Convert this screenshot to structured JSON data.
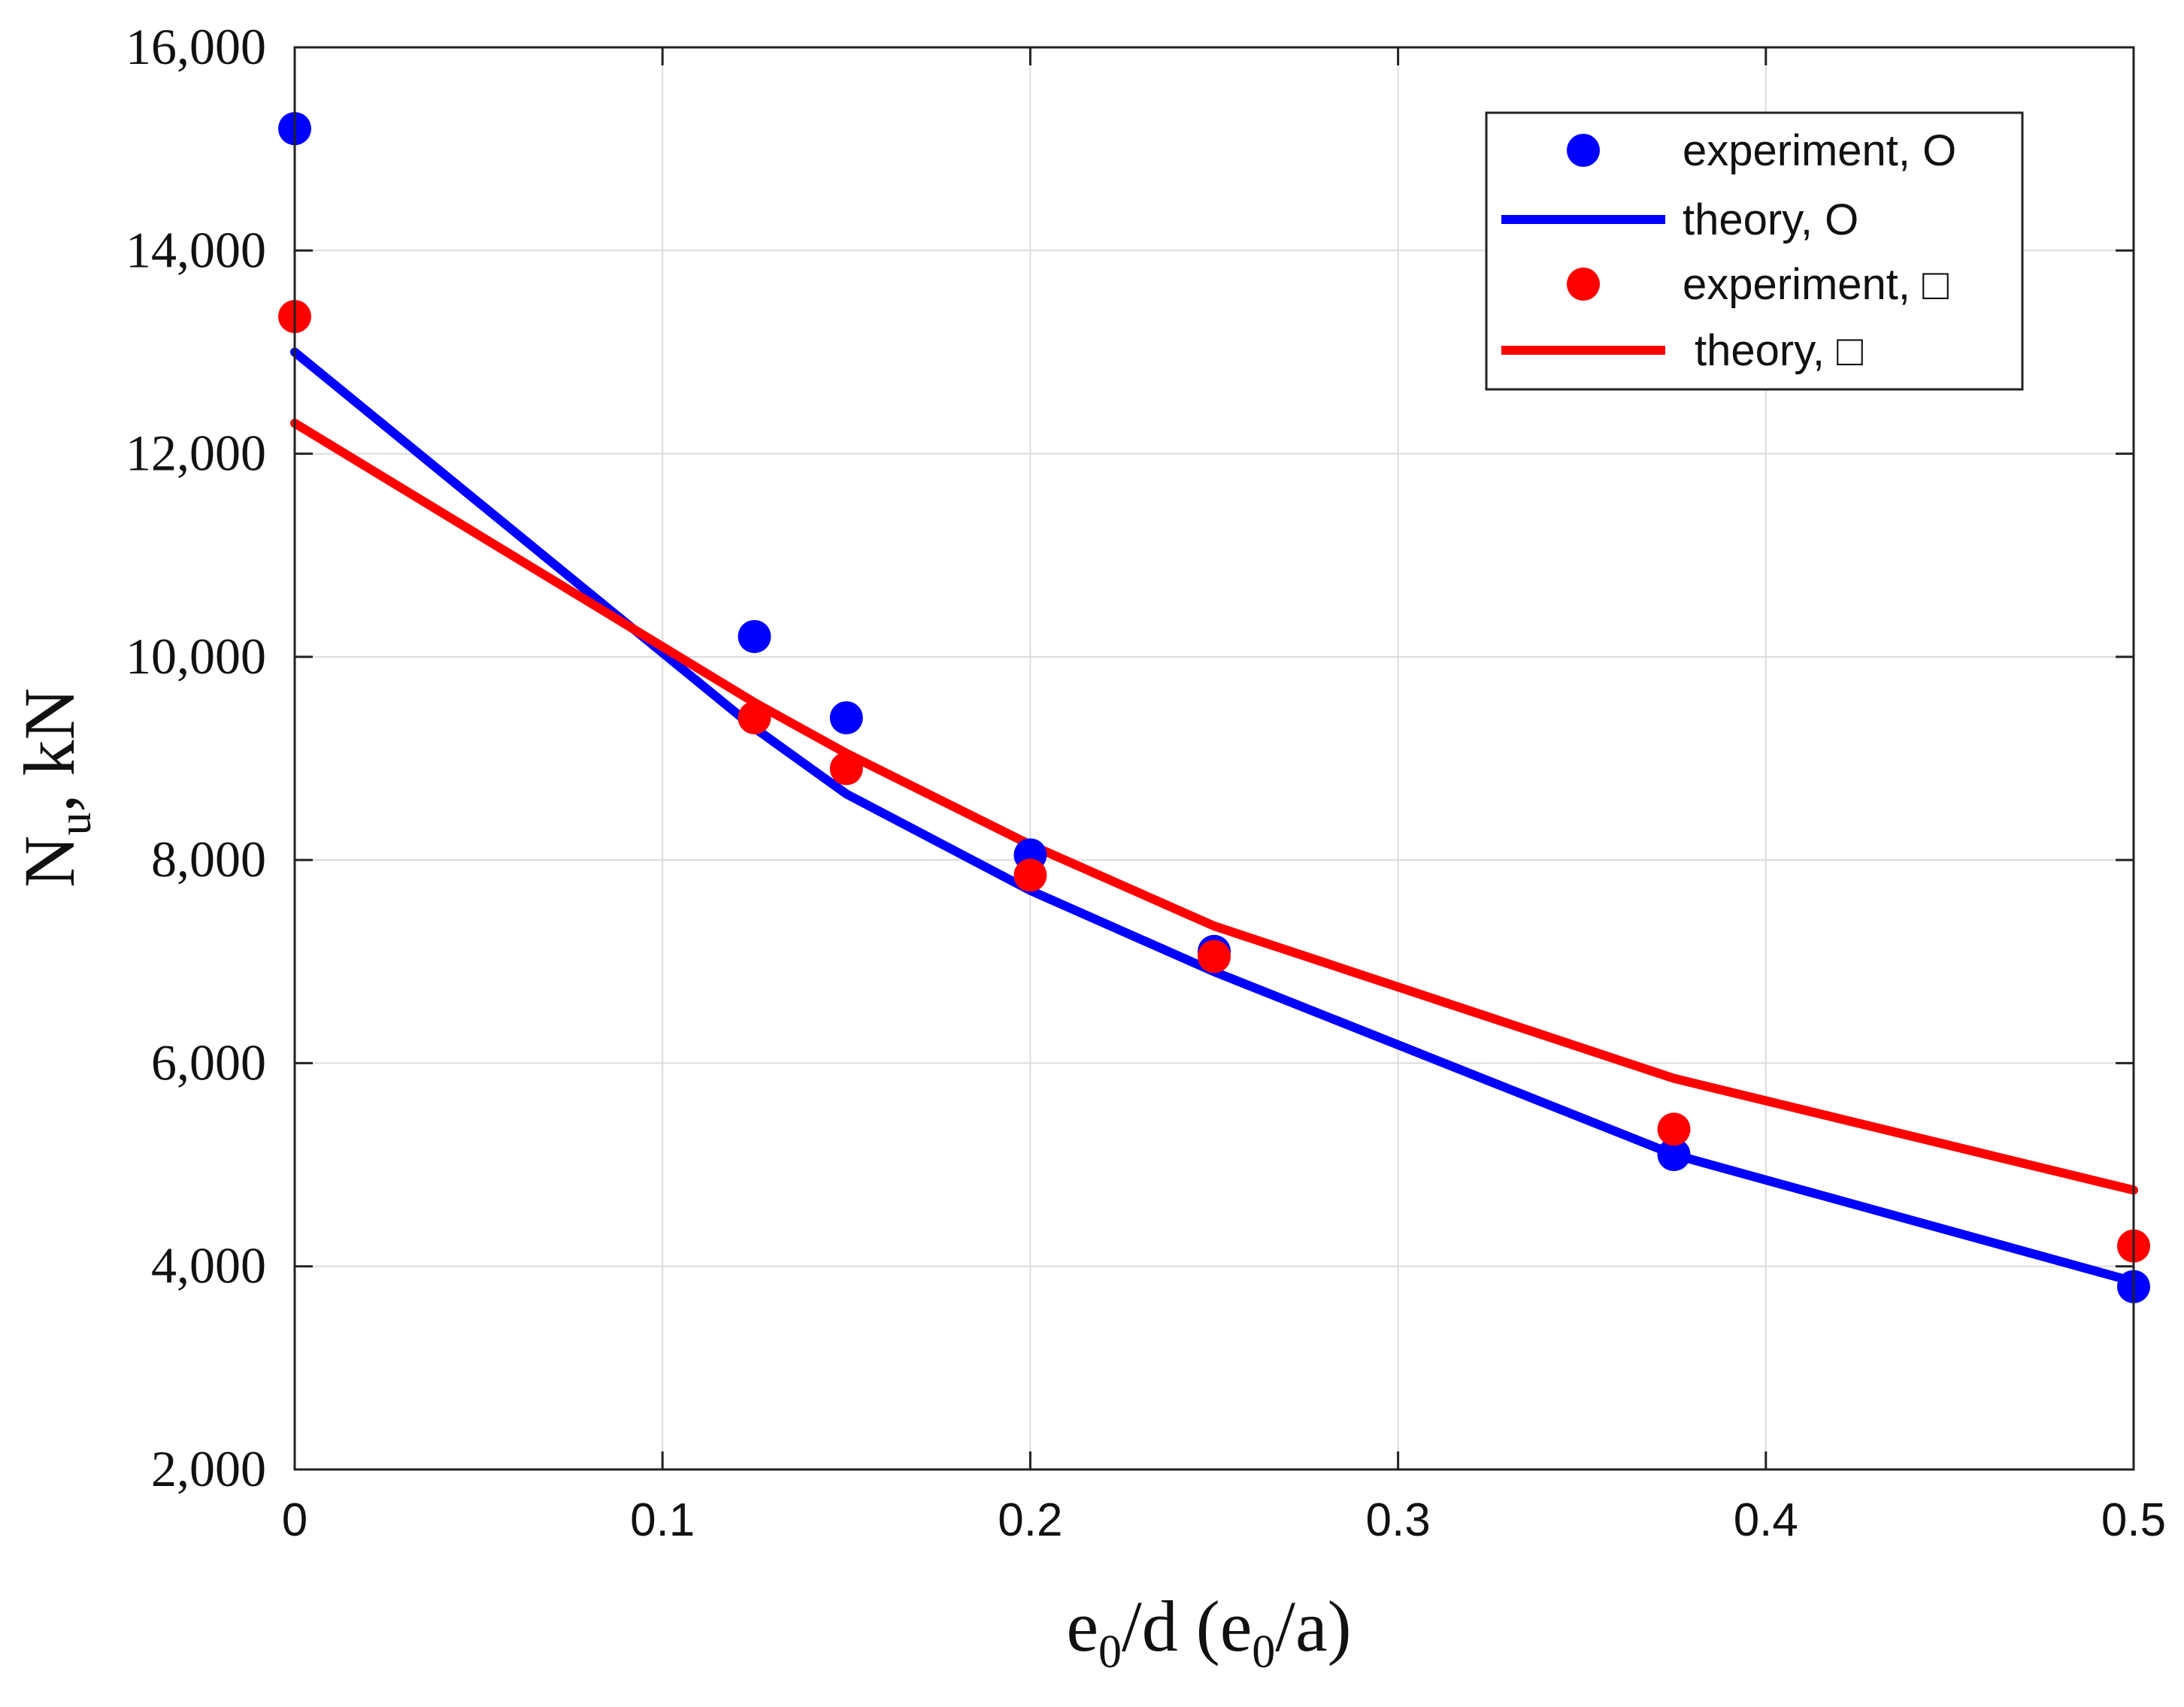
{
  "chart_data": {
    "type": "line",
    "title": "",
    "xlabel": "e0/d (e0/a)",
    "ylabel": "Nu, kN",
    "xlabel_parts": {
      "e1": "e",
      "s1": "0",
      "mid": "/d (e",
      "s2": "0",
      "end": "/a)"
    },
    "ylabel_parts": {
      "base": "N",
      "sub": "u",
      "rest": ", kN"
    },
    "xlim": [
      0,
      0.5
    ],
    "ylim": [
      2000,
      16000
    ],
    "x_ticks": [
      0,
      0.1,
      0.2,
      0.3,
      0.4,
      0.5
    ],
    "x_tick_labels": [
      "0",
      "0.1",
      "0.2",
      "0.3",
      "0.4",
      "0.5"
    ],
    "y_ticks": [
      2000,
      4000,
      6000,
      8000,
      10000,
      12000,
      14000,
      16000
    ],
    "y_tick_labels": [
      "2,000",
      "4,000",
      "6,000",
      "8,000",
      "10,000",
      "12,000",
      "14,000",
      "16,000"
    ],
    "grid": true,
    "legend_position": "top-right",
    "series": [
      {
        "name": "experiment, O",
        "kind": "scatter",
        "color": "#0000ff",
        "x": [
          0,
          0.125,
          0.15,
          0.2,
          0.25,
          0.375,
          0.5
        ],
        "y": [
          15200,
          10200,
          9400,
          8050,
          7100,
          5100,
          3800
        ]
      },
      {
        "name": "theory, O",
        "kind": "line",
        "color": "#0000ff",
        "x": [
          0,
          0.125,
          0.15,
          0.2,
          0.25,
          0.375,
          0.5
        ],
        "y": [
          13000,
          9300,
          8650,
          7700,
          6900,
          5100,
          3850
        ]
      },
      {
        "name": "experiment, □",
        "kind": "scatter",
        "color": "#ff0000",
        "x": [
          0,
          0.125,
          0.15,
          0.2,
          0.25,
          0.375,
          0.5
        ],
        "y": [
          13350,
          9400,
          8900,
          7850,
          7050,
          5350,
          4200
        ]
      },
      {
        "name": "theory, □",
        "kind": "line",
        "color": "#ff0000",
        "x": [
          0,
          0.125,
          0.15,
          0.2,
          0.25,
          0.375,
          0.5
        ],
        "y": [
          12300,
          9550,
          9050,
          8150,
          7350,
          5850,
          4750
        ]
      }
    ]
  }
}
